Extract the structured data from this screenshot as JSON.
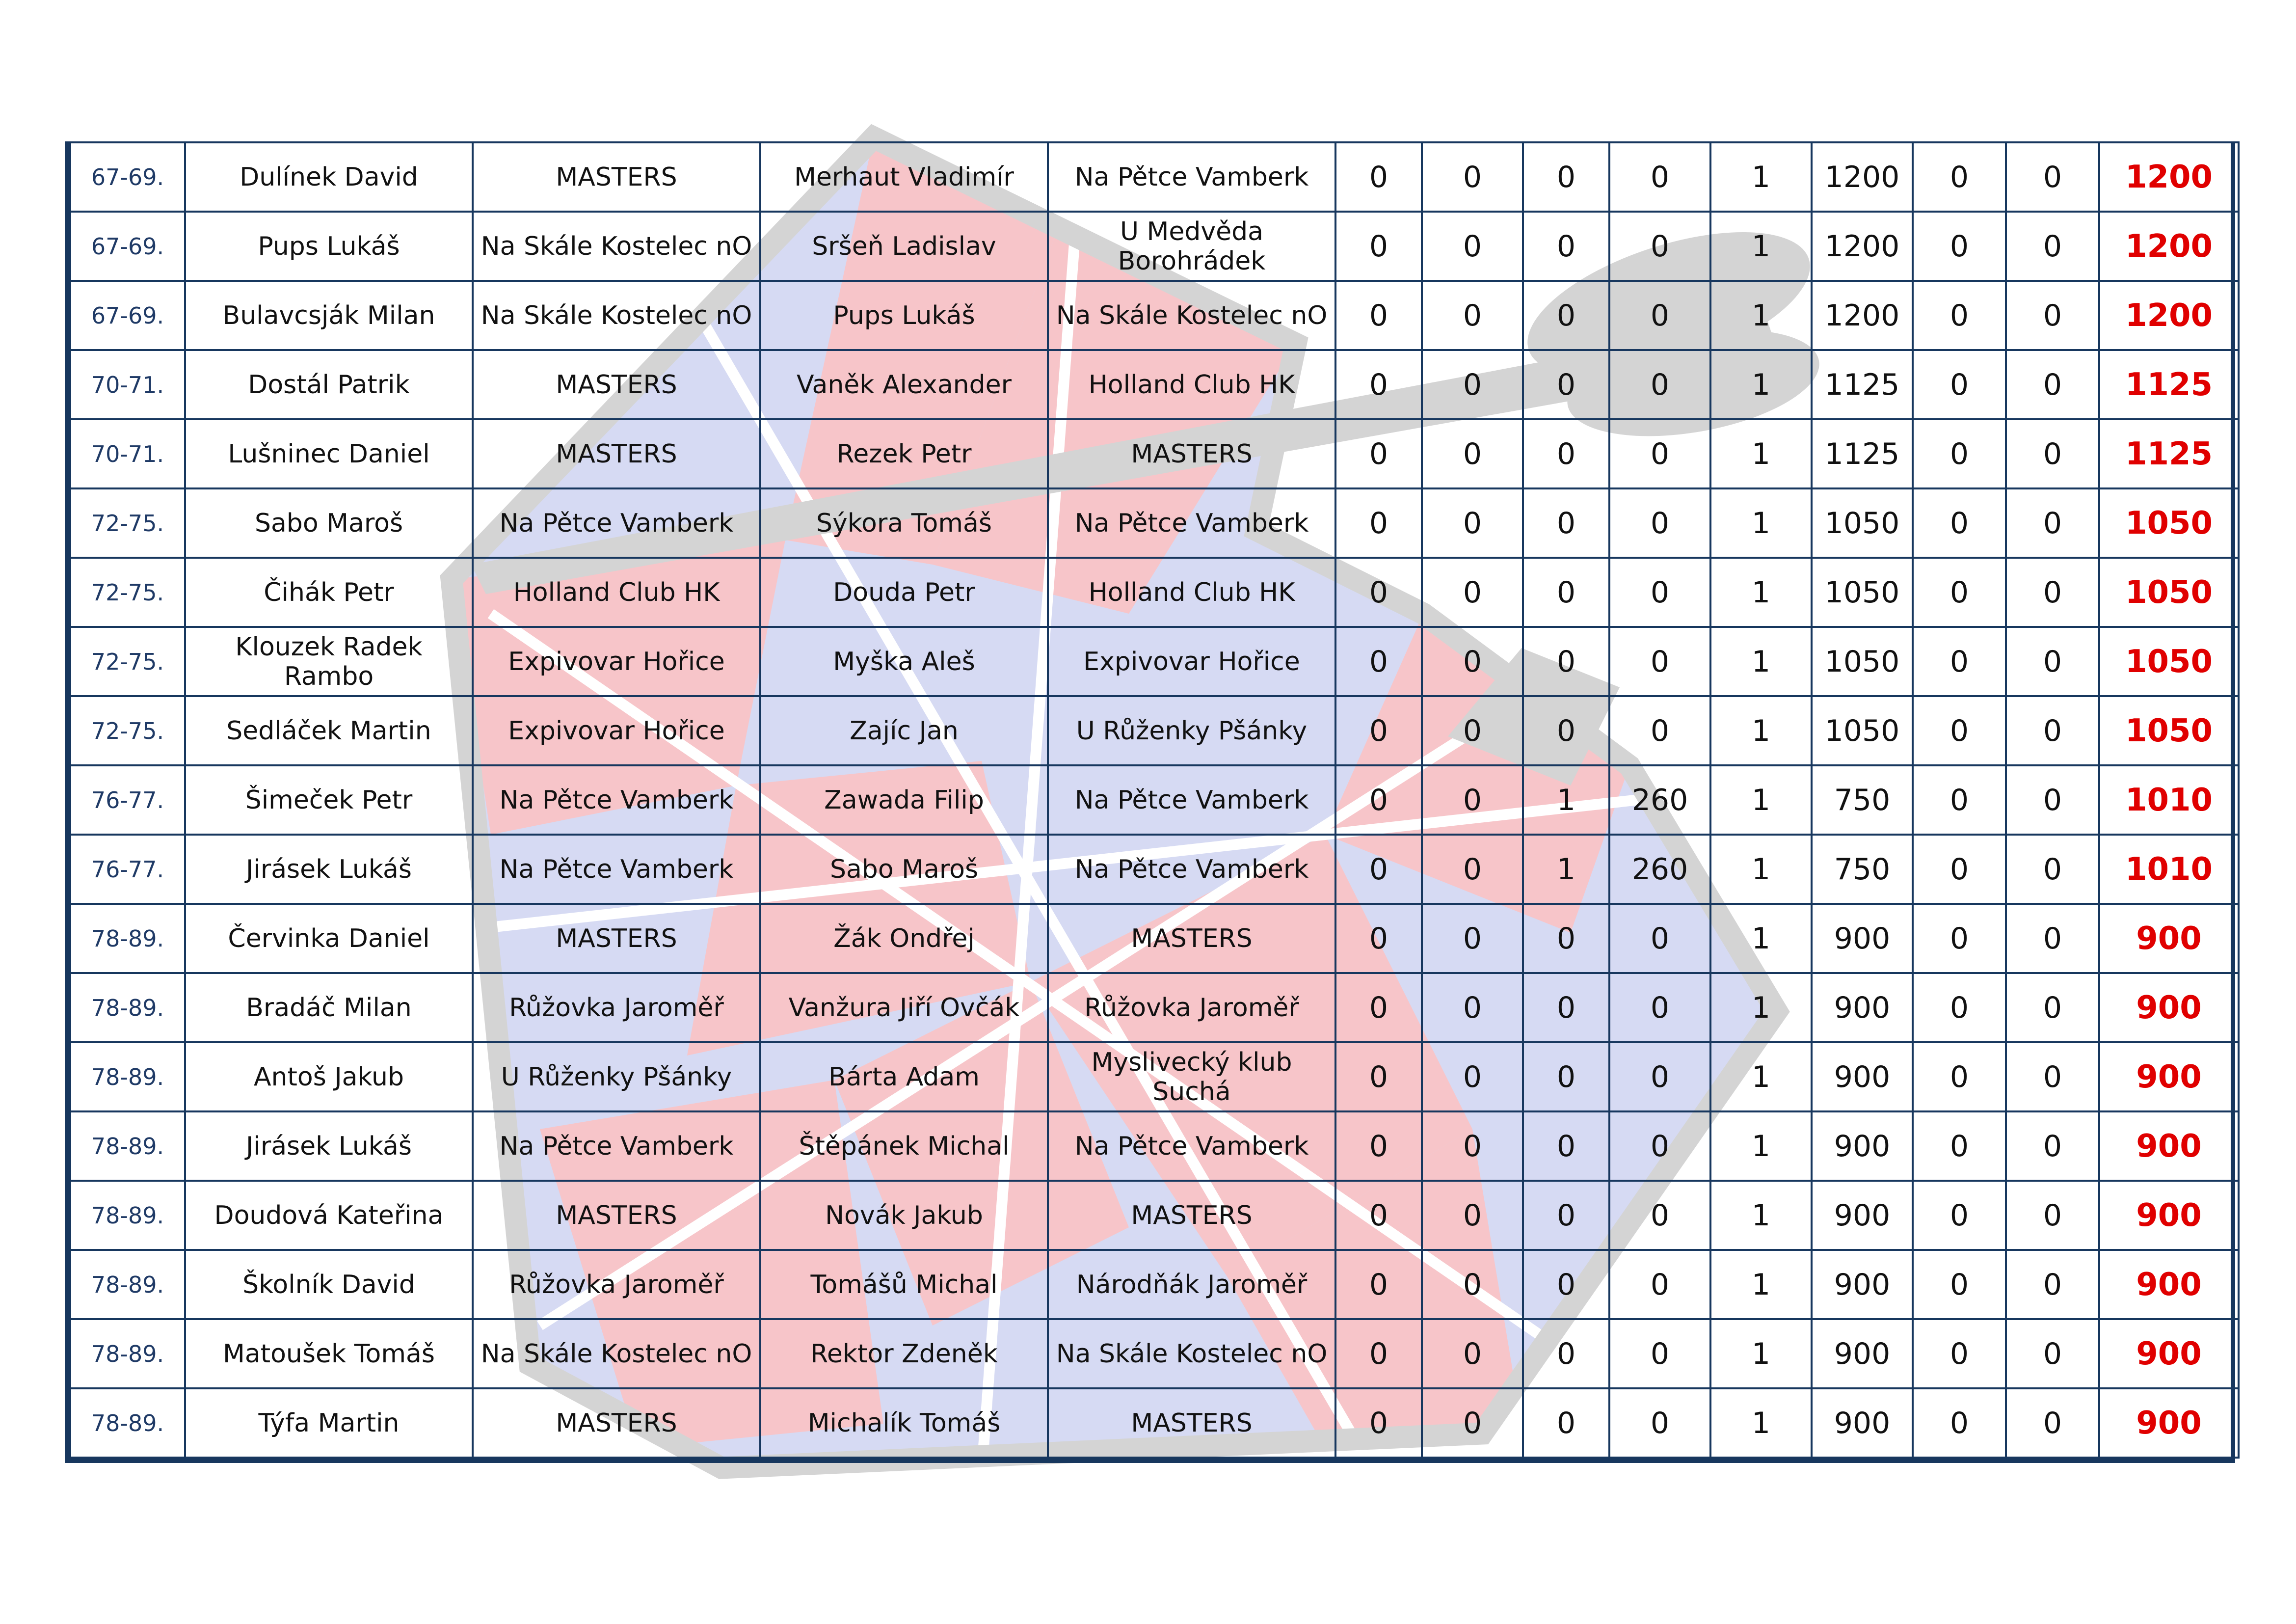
{
  "columns": [
    "rank",
    "player",
    "team",
    "opponent",
    "opponent_team",
    "c1",
    "c2",
    "c3",
    "c4",
    "c5",
    "c6",
    "c7",
    "c8",
    "total"
  ],
  "rows": [
    {
      "rank": "67-69.",
      "player": "Dulínek David",
      "team": "MASTERS",
      "opponent": "Merhaut Vladimír",
      "opponent_team": "Na Pětce Vamberk",
      "c1": "0",
      "c2": "0",
      "c3": "0",
      "c4": "0",
      "c5": "1",
      "c6": "1200",
      "c7": "0",
      "c8": "0",
      "total": "1200"
    },
    {
      "rank": "67-69.",
      "player": "Pups Lukáš",
      "team": "Na Skále Kostelec nO",
      "opponent": "Sršeň Ladislav",
      "opponent_team": "U Medvěda Borohrádek",
      "c1": "0",
      "c2": "0",
      "c3": "0",
      "c4": "0",
      "c5": "1",
      "c6": "1200",
      "c7": "0",
      "c8": "0",
      "total": "1200"
    },
    {
      "rank": "67-69.",
      "player": "Bulavcsják Milan",
      "team": "Na Skále Kostelec nO",
      "opponent": "Pups Lukáš",
      "opponent_team": "Na Skále Kostelec nO",
      "c1": "0",
      "c2": "0",
      "c3": "0",
      "c4": "0",
      "c5": "1",
      "c6": "1200",
      "c7": "0",
      "c8": "0",
      "total": "1200"
    },
    {
      "rank": "70-71.",
      "player": "Dostál Patrik",
      "team": "MASTERS",
      "opponent": "Vaněk Alexander",
      "opponent_team": "Holland Club HK",
      "c1": "0",
      "c2": "0",
      "c3": "0",
      "c4": "0",
      "c5": "1",
      "c6": "1125",
      "c7": "0",
      "c8": "0",
      "total": "1125"
    },
    {
      "rank": "70-71.",
      "player": "Lušninec Daniel",
      "team": "MASTERS",
      "opponent": "Rezek Petr",
      "opponent_team": "MASTERS",
      "c1": "0",
      "c2": "0",
      "c3": "0",
      "c4": "0",
      "c5": "1",
      "c6": "1125",
      "c7": "0",
      "c8": "0",
      "total": "1125"
    },
    {
      "rank": "72-75.",
      "player": "Sabo Maroš",
      "team": "Na Pětce Vamberk",
      "opponent": "Sýkora Tomáš",
      "opponent_team": "Na Pětce Vamberk",
      "c1": "0",
      "c2": "0",
      "c3": "0",
      "c4": "0",
      "c5": "1",
      "c6": "1050",
      "c7": "0",
      "c8": "0",
      "total": "1050"
    },
    {
      "rank": "72-75.",
      "player": "Čihák Petr",
      "team": "Holland Club HK",
      "opponent": "Douda Petr",
      "opponent_team": "Holland Club HK",
      "c1": "0",
      "c2": "0",
      "c3": "0",
      "c4": "0",
      "c5": "1",
      "c6": "1050",
      "c7": "0",
      "c8": "0",
      "total": "1050"
    },
    {
      "rank": "72-75.",
      "player": "Klouzek Radek Rambo",
      "team": "Expivovar Hořice",
      "opponent": "Myška Aleš",
      "opponent_team": "Expivovar Hořice",
      "c1": "0",
      "c2": "0",
      "c3": "0",
      "c4": "0",
      "c5": "1",
      "c6": "1050",
      "c7": "0",
      "c8": "0",
      "total": "1050"
    },
    {
      "rank": "72-75.",
      "player": "Sedláček Martin",
      "team": "Expivovar Hořice",
      "opponent": "Zajíc Jan",
      "opponent_team": "U Růženky Pšánky",
      "c1": "0",
      "c2": "0",
      "c3": "0",
      "c4": "0",
      "c5": "1",
      "c6": "1050",
      "c7": "0",
      "c8": "0",
      "total": "1050"
    },
    {
      "rank": "76-77.",
      "player": "Šimeček Petr",
      "team": "Na Pětce Vamberk",
      "opponent": "Zawada Filip",
      "opponent_team": "Na Pětce Vamberk",
      "c1": "0",
      "c2": "0",
      "c3": "1",
      "c4": "260",
      "c5": "1",
      "c6": "750",
      "c7": "0",
      "c8": "0",
      "total": "1010"
    },
    {
      "rank": "76-77.",
      "player": "Jirásek Lukáš",
      "team": "Na Pětce Vamberk",
      "opponent": "Sabo Maroš",
      "opponent_team": "Na Pětce Vamberk",
      "c1": "0",
      "c2": "0",
      "c3": "1",
      "c4": "260",
      "c5": "1",
      "c6": "750",
      "c7": "0",
      "c8": "0",
      "total": "1010"
    },
    {
      "rank": "78-89.",
      "player": "Červinka Daniel",
      "team": "MASTERS",
      "opponent": "Žák Ondřej",
      "opponent_team": "MASTERS",
      "c1": "0",
      "c2": "0",
      "c3": "0",
      "c4": "0",
      "c5": "1",
      "c6": "900",
      "c7": "0",
      "c8": "0",
      "total": "900"
    },
    {
      "rank": "78-89.",
      "player": "Bradáč Milan",
      "team": "Růžovka Jaroměř",
      "opponent": "Vanžura Jiří Ovčák",
      "opponent_team": "Růžovka Jaroměř",
      "c1": "0",
      "c2": "0",
      "c3": "0",
      "c4": "0",
      "c5": "1",
      "c6": "900",
      "c7": "0",
      "c8": "0",
      "total": "900"
    },
    {
      "rank": "78-89.",
      "player": "Antoš Jakub",
      "team": "U Růženky Pšánky",
      "opponent": "Bárta Adam",
      "opponent_team": "Myslivecký klub Suchá",
      "c1": "0",
      "c2": "0",
      "c3": "0",
      "c4": "0",
      "c5": "1",
      "c6": "900",
      "c7": "0",
      "c8": "0",
      "total": "900"
    },
    {
      "rank": "78-89.",
      "player": "Jirásek Lukáš",
      "team": "Na Pětce Vamberk",
      "opponent": "Štěpánek Michal",
      "opponent_team": "Na Pětce Vamberk",
      "c1": "0",
      "c2": "0",
      "c3": "0",
      "c4": "0",
      "c5": "1",
      "c6": "900",
      "c7": "0",
      "c8": "0",
      "total": "900"
    },
    {
      "rank": "78-89.",
      "player": "Doudová Kateřina",
      "team": "MASTERS",
      "opponent": "Novák Jakub",
      "opponent_team": "MASTERS",
      "c1": "0",
      "c2": "0",
      "c3": "0",
      "c4": "0",
      "c5": "1",
      "c6": "900",
      "c7": "0",
      "c8": "0",
      "total": "900"
    },
    {
      "rank": "78-89.",
      "player": "Školník David",
      "team": "Růžovka Jaroměř",
      "opponent": "Tomášů Michal",
      "opponent_team": "Národňák Jaroměř",
      "c1": "0",
      "c2": "0",
      "c3": "0",
      "c4": "0",
      "c5": "1",
      "c6": "900",
      "c7": "0",
      "c8": "0",
      "total": "900"
    },
    {
      "rank": "78-89.",
      "player": "Matoušek Tomáš",
      "team": "Na Skále Kostelec nO",
      "opponent": "Rektor Zdeněk",
      "opponent_team": "Na Skále Kostelec nO",
      "c1": "0",
      "c2": "0",
      "c3": "0",
      "c4": "0",
      "c5": "1",
      "c6": "900",
      "c7": "0",
      "c8": "0",
      "total": "900"
    },
    {
      "rank": "78-89.",
      "player": "Týfa Martin",
      "team": "MASTERS",
      "opponent": "Michalík Tomáš",
      "opponent_team": "MASTERS",
      "c1": "0",
      "c2": "0",
      "c3": "0",
      "c4": "0",
      "c5": "1",
      "c6": "900",
      "c7": "0",
      "c8": "0",
      "total": "900"
    }
  ],
  "colors": {
    "border": "#17375e",
    "total_text": "#e00000",
    "rank_text": "#1f3a66",
    "watermark_red": "#f7c5c9",
    "watermark_blue": "#d2d6f2",
    "watermark_gray": "#d4d4d4"
  },
  "watermark": {
    "icon": "dartboard-dart-icon"
  }
}
